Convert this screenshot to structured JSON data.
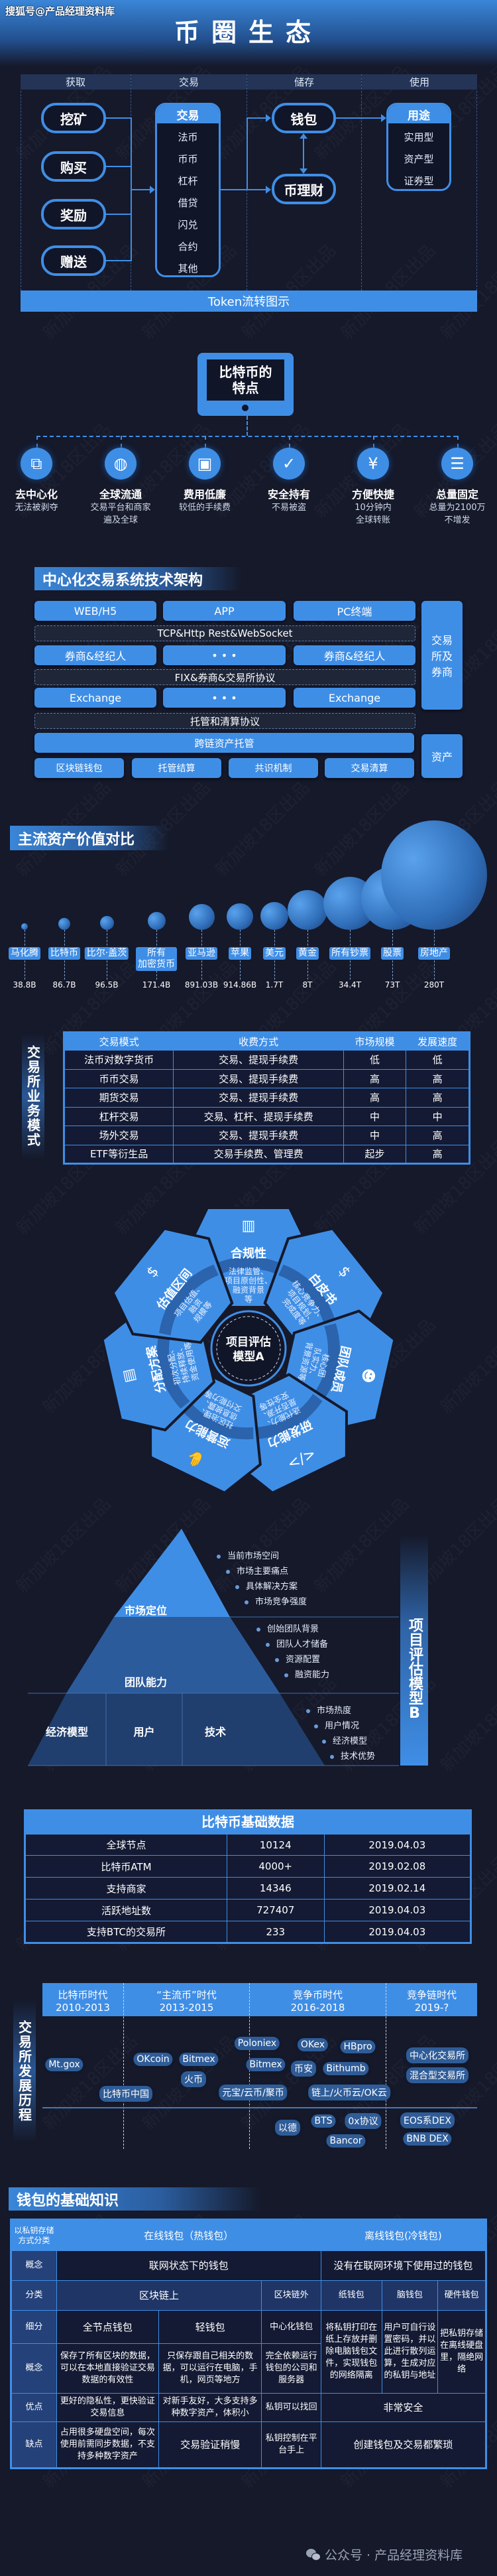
{
  "watermark": "新加坡18区出品",
  "header": {
    "brand": "搜狐号@产品经理资料库",
    "title": "币圈生态"
  },
  "token_flow": {
    "columns": [
      "获取",
      "交易",
      "储存",
      "使用"
    ],
    "acquire": [
      "挖矿",
      "购买",
      "奖励",
      "赠送"
    ],
    "trade": {
      "title": "交易",
      "items": [
        "法币",
        "币币",
        "杠杆",
        "借贷",
        "闪兑",
        "合约",
        "其他"
      ]
    },
    "storage": [
      "钱包",
      "币理财"
    ],
    "usage": {
      "title": "用途",
      "items": [
        "实用型",
        "资产型",
        "证券型"
      ]
    },
    "caption": "Token流转图示"
  },
  "btc_features": {
    "title": "比特币的特点",
    "items": [
      {
        "icon": "decentralized-icon",
        "title": "去中心化",
        "desc": [
          "无法被剥夺"
        ]
      },
      {
        "icon": "globe-icon",
        "title": "全球流通",
        "desc": [
          "交易平台和商家",
          "遍及全球"
        ]
      },
      {
        "icon": "wallet-icon",
        "title": "费用低廉",
        "desc": [
          "较低的手续费"
        ]
      },
      {
        "icon": "shield-check-icon",
        "title": "安全持有",
        "desc": [
          "不易被盗"
        ]
      },
      {
        "icon": "yen-cycle-icon",
        "title": "方便快捷",
        "desc": [
          "10分钟内",
          "全球转账"
        ]
      },
      {
        "icon": "coins-stack-icon",
        "title": "总量固定",
        "desc": [
          "总量为2100万",
          "不增发"
        ]
      }
    ]
  },
  "architecture": {
    "title": "中心化交易系统技术架构",
    "row1": [
      "WEB/H5",
      "APP",
      "PC终端"
    ],
    "proto1": "TCP&Http Rest&WebSocket",
    "row2": [
      "券商&经纪人",
      "• • •",
      "券商&经纪人"
    ],
    "proto2": "FIX&券商&交易所协议",
    "row3": [
      "Exchange",
      "• • •",
      "Exchange"
    ],
    "proto3": "托管和清算协议",
    "custody": "跨链资产托管",
    "bottom": [
      "区块链钱包",
      "托管结算",
      "共识机制",
      "交易清算"
    ],
    "side_exchange": "交易所及券商",
    "side_asset": "资产"
  },
  "asset_compare": {
    "title": "主流资产价值对比",
    "items": [
      {
        "label": "马化腾",
        "value": "38.8B"
      },
      {
        "label": "比特币",
        "value": "86.7B"
      },
      {
        "label": "比尔·盖茨",
        "value": "96.5B"
      },
      {
        "label": "所有\n加密货币",
        "value": "171.4B"
      },
      {
        "label": "亚马逊",
        "value": "891.03B"
      },
      {
        "label": "苹果",
        "value": "914.86B"
      },
      {
        "label": "美元",
        "value": "1.7T"
      },
      {
        "label": "黄金",
        "value": "8T"
      },
      {
        "label": "所有钞票",
        "value": "34.4T"
      },
      {
        "label": "股票",
        "value": "73T"
      },
      {
        "label": "房地产",
        "value": "280T"
      }
    ]
  },
  "exchange_modes": {
    "title": "交易所业务模式",
    "headers": [
      "交易模式",
      "收费方式",
      "市场规模",
      "发展速度"
    ],
    "rows": [
      [
        "法币对数字货币",
        "交易、提现手续费",
        "低",
        "低"
      ],
      [
        "币币交易",
        "交易、提现手续费",
        "高",
        "高"
      ],
      [
        "期货交易",
        "交易、提现手续费",
        "高",
        "高"
      ],
      [
        "杠杆交易",
        "交易、杠杆、提现手续费",
        "中",
        "中"
      ],
      [
        "场外交易",
        "交易、提现手续费",
        "中",
        "高"
      ],
      [
        "ETF等衍生品",
        "交易手续费、管理费",
        "起步",
        "高"
      ]
    ]
  },
  "model_a": {
    "center": "项目评估\n模型A",
    "petals": [
      {
        "icon": "bar-chart-icon",
        "title": "合规性",
        "desc": "法律监管、\n项目原创性、\n融资背景\n等"
      },
      {
        "icon": "lightbulb-dollar-icon",
        "title": "白皮书",
        "desc": "核心竞争力、\n项目规划、\n完成度等"
      },
      {
        "icon": "team-icon",
        "title": "团队成员",
        "desc": "核心团\n队实力、\n背景资源等"
      },
      {
        "icon": "code-icon",
        "title": "研发能力",
        "desc": "迭代能力、\n是否开源、\n安全性等"
      },
      {
        "icon": "handshake-icon",
        "title": "运营能力",
        "desc": "社区治理、\n信息披露、\n交付能力等"
      },
      {
        "icon": "distribution-icon",
        "title": "分配方案",
        "desc": "初次分配、\n持续释放、\n资金使用等"
      },
      {
        "icon": "dollar-circle-icon",
        "title": "估值区间",
        "desc": "项目估值、\n融资\n规模等"
      }
    ]
  },
  "model_b": {
    "label": "项目评估模型B",
    "top": {
      "title": "市场定位",
      "bullets": [
        "当前市场空间",
        "市场主要痛点",
        "具体解决方案",
        "市场竞争强度"
      ]
    },
    "middle": {
      "title": "团队能力",
      "bullets": [
        "创始团队背景",
        "团队人才储备",
        "资源配置",
        "融资能力"
      ]
    },
    "bottom": {
      "cells": [
        "经济模型",
        "用户",
        "技术"
      ],
      "bullets": [
        "市场热度",
        "用户情况",
        "经济模型",
        "技术优势"
      ]
    }
  },
  "btc_data": {
    "title": "比特币基础数据",
    "rows": [
      [
        "全球节点",
        "10124",
        "2019.04.03"
      ],
      [
        "比特币ATM",
        "4000+",
        "2019.02.08"
      ],
      [
        "支持商家",
        "14346",
        "2019.02.14"
      ],
      [
        "活跃地址数",
        "727407",
        "2019.04.03"
      ],
      [
        "支持BTC的交易所",
        "233",
        "2019.04.03"
      ]
    ]
  },
  "exchange_history": {
    "title": "交易所发展历程",
    "eras": [
      {
        "name": "比特币时代",
        "years": "2010-2013"
      },
      {
        "name": "“主流币”时代",
        "years": "2013-2015"
      },
      {
        "name": "竞争币时代",
        "years": "2016-2018"
      },
      {
        "name": "竞争链时代",
        "years": "2019-?"
      }
    ],
    "centralized": [
      "Mt.gox",
      "比特币中国",
      "OKcoin",
      "Bitmex",
      "火币",
      "Poloniex",
      "Bitmex",
      "元宝/云币/聚币",
      "OKex",
      "HBpro",
      "币安",
      "Bithumb",
      "链上/火币云/OK云",
      "中心化交易所",
      "混合型交易所"
    ],
    "decentralized": [
      "以德",
      "BTS",
      "0x协议",
      "Bancor",
      "EOS系DEX",
      "BNB DEX"
    ]
  },
  "wallet": {
    "title": "钱包的基础知识",
    "corner": "以私钥存储\n方式分类",
    "online": "在线钱包（热钱包）",
    "offline": "离线钱包(冷钱包)",
    "row_labels": [
      "概念",
      "分类",
      "细分",
      "概念",
      "优点",
      "缺点"
    ],
    "online_concept": "联网状态下的钱包",
    "offline_concept": "没有在联网环境下使用过的钱包",
    "cat_on": "区块链上",
    "cat_off": "区块链外",
    "paper": "纸钱包",
    "brain": "脑钱包",
    "hardware": "硬件钱包",
    "full_node": "全节点钱包",
    "light": "轻钱包",
    "central": "中心化钱包",
    "full_node_concept": "保存了所有区块的数据，可以在本地直接验证交易数据的有效性",
    "light_concept": "只保存跟自己相关的数据，可以运行在电脑，手机，网页等地方",
    "central_concept": "完全依赖运行钱包的公司和服务器",
    "paper_desc": "将私钥打印在纸上存放并删除电脑钱包文件，实现钱包的网络隔离",
    "brain_desc": "用户可自行设置密码，并以此进行散列运算，生成对应的私钥与地址",
    "hardware_desc": "把私钥存储在离线硬盘里，隔绝网络",
    "full_node_pro": "更好的隐私性，更快验证交易信息",
    "light_pro": "对新手友好，大多支持多种数字资产，体积小",
    "central_pro": "私钥可以找回",
    "offline_pro": "非常安全",
    "full_node_con": "占用很多硬盘空间，每次使用前需同步数据，不支持多种数字资产",
    "light_con": "交易验证稍慢",
    "central_con": "私钥控制在平台手上",
    "offline_con": "创建钱包及交易都繁琐"
  },
  "footer": {
    "text": "公众号 · 产品经理资料库",
    "icon": "wechat-icon"
  }
}
